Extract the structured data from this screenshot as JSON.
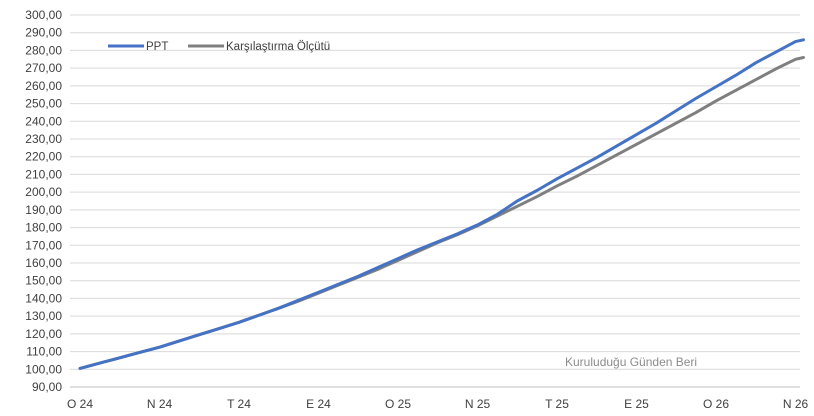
{
  "chart_data": {
    "type": "line",
    "title": "",
    "xlabel": "",
    "ylabel": "",
    "annotation": "Kuruluduğu Günden Beri",
    "x_ticks": [
      "O 24",
      "N 24",
      "T 24",
      "E 24",
      "O 25",
      "N 25",
      "T 25",
      "E 25",
      "O 26",
      "N 26"
    ],
    "y_ticks": [
      "90,00",
      "100,00",
      "110,00",
      "120,00",
      "130,00",
      "140,00",
      "150,00",
      "160,00",
      "170,00",
      "180,00",
      "190,00",
      "200,00",
      "210,00",
      "220,00",
      "230,00",
      "240,00",
      "250,00",
      "260,00",
      "270,00",
      "280,00",
      "290,00",
      "300,00"
    ],
    "ylim": [
      90,
      300
    ],
    "grid": "horizontal",
    "legend": "top-left",
    "x": [
      0,
      0.25,
      0.5,
      0.75,
      1,
      1.25,
      1.5,
      1.75,
      2,
      2.25,
      2.5,
      2.75,
      3,
      3.25,
      3.5,
      3.75,
      4,
      4.25,
      4.5,
      4.75,
      5,
      5.25,
      5.5,
      5.75,
      6,
      6.25,
      6.5,
      6.75,
      7,
      7.25,
      7.5,
      7.75,
      8,
      8.25,
      8.5,
      8.75,
      9,
      9.1
    ],
    "series": [
      {
        "name": "PPT",
        "color": "#4472c4",
        "values": [
          100.5,
          103.5,
          106.5,
          109.5,
          112.5,
          116,
          119.5,
          123,
          126.5,
          130.5,
          134.5,
          139,
          143.5,
          148,
          152.5,
          157.5,
          162.5,
          167.5,
          172,
          176.5,
          181.5,
          187.5,
          195,
          201,
          207.5,
          213.5,
          219.5,
          226,
          232.5,
          239,
          246,
          253,
          259.5,
          266,
          273,
          279,
          285,
          286
        ]
      },
      {
        "name": "Karşılaştırma Ölçütü",
        "color": "#7f7f7f",
        "values": [
          100.5,
          103.5,
          106.5,
          109.5,
          112.5,
          116,
          119.5,
          123,
          126.5,
          130.5,
          134.5,
          138.5,
          143,
          147.5,
          152,
          156.5,
          161.5,
          166.5,
          171.5,
          176,
          181,
          186.5,
          192,
          197.5,
          203.5,
          209,
          215,
          221,
          227,
          233,
          239,
          245,
          251.5,
          257.5,
          263.5,
          269.5,
          275,
          276
        ]
      }
    ]
  }
}
